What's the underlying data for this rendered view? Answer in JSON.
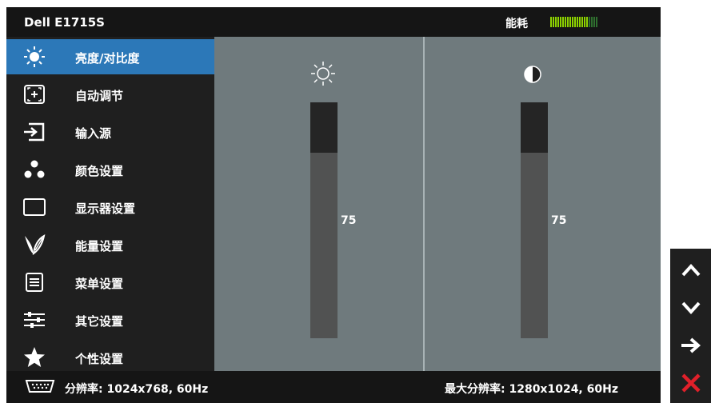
{
  "header": {
    "title": "Dell E1715S",
    "energy_label": "能耗",
    "energy_level": 0.8,
    "energy_segments": 20
  },
  "menu": {
    "items": [
      {
        "label": "亮度/对比度",
        "icon": "brightness-icon",
        "selected": true
      },
      {
        "label": "自动调节",
        "icon": "auto-adjust-icon",
        "selected": false
      },
      {
        "label": "输入源",
        "icon": "input-source-icon",
        "selected": false
      },
      {
        "label": "颜色设置",
        "icon": "color-settings-icon",
        "selected": false
      },
      {
        "label": "显示器设置",
        "icon": "display-settings-icon",
        "selected": false
      },
      {
        "label": "能量设置",
        "icon": "energy-settings-icon",
        "selected": false
      },
      {
        "label": "菜单设置",
        "icon": "menu-settings-icon",
        "selected": false
      },
      {
        "label": "其它设置",
        "icon": "other-settings-icon",
        "selected": false
      },
      {
        "label": "个性设置",
        "icon": "personalize-icon",
        "selected": false
      }
    ]
  },
  "brightness": {
    "icon": "sun-icon",
    "value": "75",
    "level": 0.75
  },
  "contrast": {
    "icon": "contrast-icon",
    "value": "75",
    "level": 0.75
  },
  "status": {
    "resolution": "分辨率: 1024x768, 60Hz",
    "max_resolution": "最大分辨率: 1280x1024, 60Hz"
  },
  "nav": {
    "buttons": [
      "chevron-up-icon",
      "chevron-down-icon",
      "arrow-right-icon",
      "close-icon"
    ]
  },
  "colors": {
    "selected": "#2c78b8",
    "panel": "#6f7a7d",
    "energy_on": "#8dd300",
    "close": "#e0202a"
  }
}
